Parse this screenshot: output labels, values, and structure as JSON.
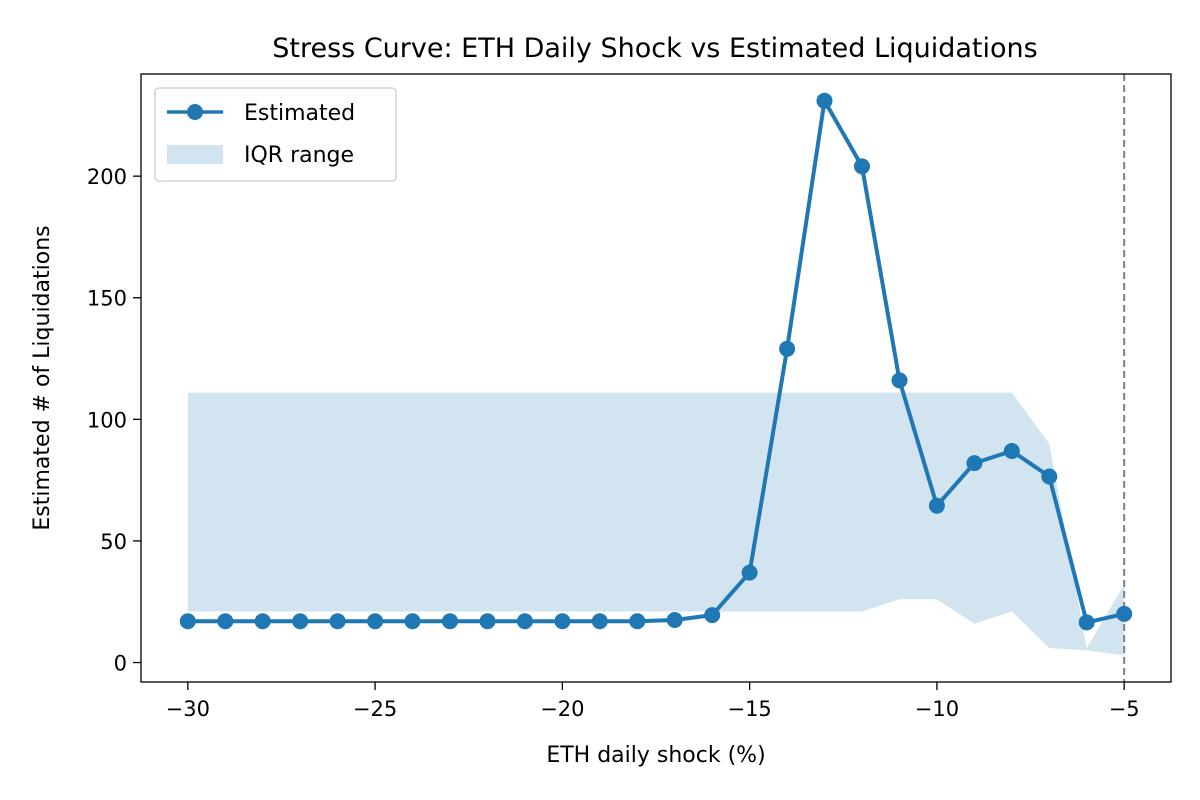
{
  "chart_data": {
    "type": "line",
    "title": "Stress Curve: ETH Daily Shock vs Estimated Liquidations",
    "xlabel": "ETH daily shock (%)",
    "ylabel": "Estimated # of Liquidations",
    "xlim": [
      -31.25,
      -3.75
    ],
    "ylim": [
      -8,
      242
    ],
    "xticks": [
      -30,
      -25,
      -20,
      -15,
      -10,
      -5
    ],
    "xtick_labels": [
      "−30",
      "−25",
      "−20",
      "−15",
      "−10",
      "−5"
    ],
    "yticks": [
      0,
      50,
      100,
      150,
      200
    ],
    "ytick_labels": [
      "0",
      "50",
      "100",
      "150",
      "200"
    ],
    "grid": false,
    "legend_position": "upper-left",
    "reference_line": {
      "x": -5,
      "style": "dashed",
      "color": "#808080"
    },
    "series": [
      {
        "name": "Estimated",
        "kind": "line-marker",
        "color": "#1f77b4",
        "x": [
          -30,
          -29,
          -28,
          -27,
          -26,
          -25,
          -24,
          -23,
          -22,
          -21,
          -20,
          -19,
          -18,
          -17,
          -16,
          -15,
          -14,
          -13,
          -12,
          -11,
          -10,
          -9,
          -8,
          -7,
          -6,
          -5
        ],
        "y": [
          17,
          17,
          17,
          17,
          17,
          17,
          17,
          17,
          17,
          17,
          17,
          17,
          17,
          17.5,
          19.5,
          37,
          129,
          231,
          204,
          116,
          64.5,
          82,
          87,
          76.5,
          16.5,
          20
        ]
      },
      {
        "name": "IQR range",
        "kind": "band",
        "color": "#1f77b4",
        "opacity": 0.2,
        "x": [
          -30,
          -29,
          -28,
          -27,
          -26,
          -25,
          -24,
          -23,
          -22,
          -21,
          -20,
          -19,
          -18,
          -17,
          -16,
          -15,
          -14,
          -13,
          -12,
          -11,
          -10,
          -9,
          -8,
          -7,
          -6,
          -5
        ],
        "low": [
          21,
          21,
          21,
          21,
          21,
          21,
          21,
          21,
          21,
          21,
          21,
          21,
          21,
          21,
          21,
          21,
          21,
          21,
          21,
          26,
          26,
          16,
          21,
          6,
          5,
          3
        ],
        "high": [
          111,
          111,
          111,
          111,
          111,
          111,
          111,
          111,
          111,
          111,
          111,
          111,
          111,
          111,
          111,
          111,
          111,
          111,
          111,
          111,
          111,
          111,
          111,
          90,
          6,
          32
        ]
      }
    ]
  }
}
